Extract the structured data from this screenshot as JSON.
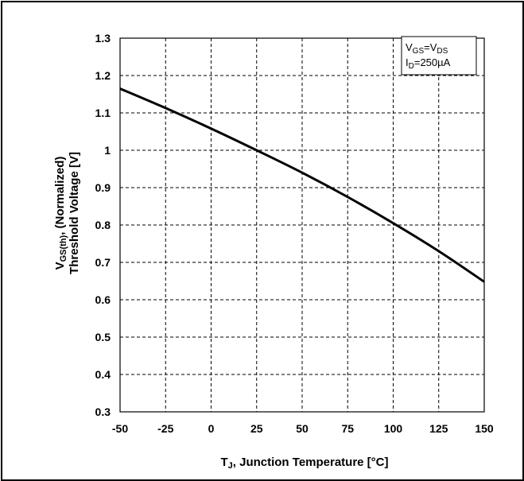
{
  "chart_data": {
    "type": "line",
    "xlabel": "T_J, Junction Temperature [°C]",
    "ylabel": "V_GS(th), (Normalized) Threshold Voltage [V]",
    "xlabel_parts": {
      "symbol": "T",
      "subscript": "J",
      "text": ", Junction Temperature [°C]"
    },
    "ylabel_parts": {
      "line1_symbol": "V",
      "line1_subscript": "GS(th)",
      "line1_text": ", (Normalized)",
      "line2_text": "Threshold Voltage [V]"
    },
    "xlim": [
      -50,
      150
    ],
    "ylim": [
      0.3,
      1.3
    ],
    "x_ticks": [
      -50,
      -25,
      0,
      25,
      50,
      75,
      100,
      125,
      150
    ],
    "y_ticks": [
      0.3,
      0.4,
      0.5,
      0.6,
      0.7,
      0.8,
      0.9,
      1,
      1.1,
      1.2,
      1.3
    ],
    "x_tick_labels": [
      "-50",
      "-25",
      "0",
      "25",
      "50",
      "75",
      "100",
      "125",
      "150"
    ],
    "y_tick_labels": [
      "0.3",
      "0.4",
      "0.5",
      "0.6",
      "0.7",
      "0.8",
      "0.9",
      "1",
      "1.1",
      "1.2",
      "1.3"
    ],
    "grid": true,
    "grid_style": "dashed",
    "legend_placement": "top-right",
    "annotation": {
      "line1_symbol": "V",
      "line1_sub_a": "GS",
      "line1_eq": "=V",
      "line1_sub_b": "DS",
      "line2_symbol": "I",
      "line2_sub": "D",
      "line2_text": "=250µA"
    },
    "series": [
      {
        "x": [
          -50,
          -25,
          0,
          25,
          50,
          75,
          100,
          125,
          150
        ],
        "y": [
          1.165,
          1.113,
          1.058,
          1.0,
          0.94,
          0.875,
          0.805,
          0.73,
          0.648
        ]
      }
    ],
    "line_color": "#000000"
  }
}
